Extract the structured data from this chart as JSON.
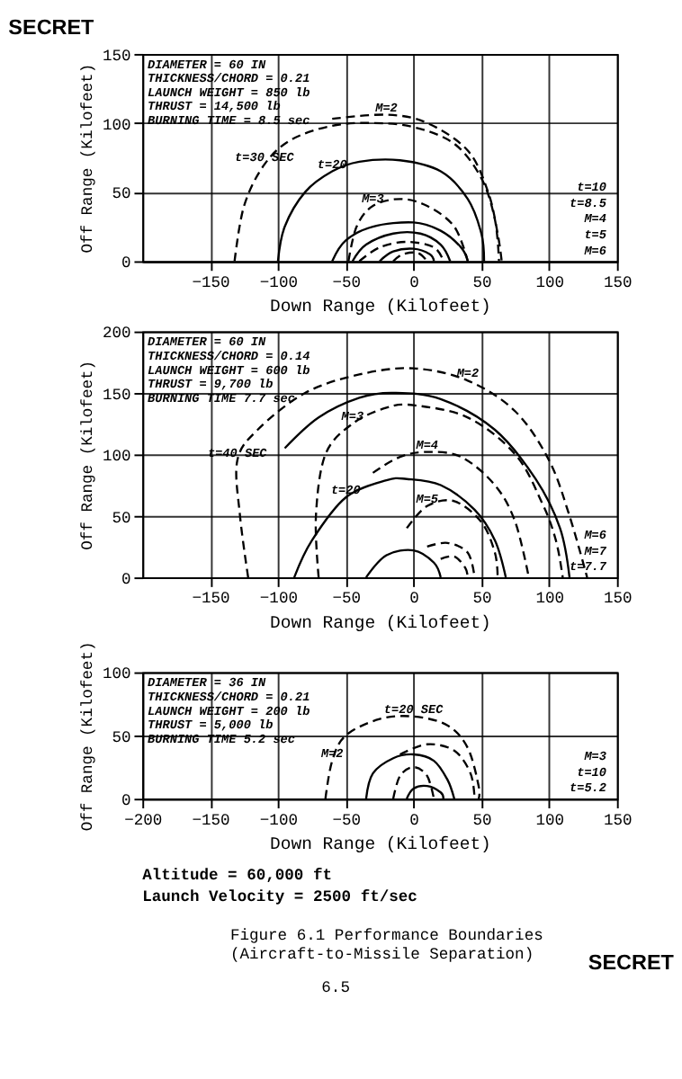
{
  "chart_data": [
    {
      "type": "line",
      "title": "SECRET",
      "xlabel": "Down Range (Kilofeet)",
      "ylabel": "Off Range (Kilofeet)",
      "xlim": [
        -200,
        150
      ],
      "ylim": [
        0,
        150
      ],
      "xticks": [
        -150,
        -100,
        -50,
        0,
        50,
        100,
        150
      ],
      "yticks": [
        0,
        50,
        100,
        150
      ],
      "grid": true,
      "legend": false,
      "marker": "none",
      "series": [
        {
          "color": "#000000",
          "line_style": "dashed",
          "x": [
            -132,
            -125,
            -110,
            -90,
            -60,
            -30,
            0,
            30,
            50,
            60,
            63
          ],
          "values": [
            0,
            40,
            70,
            88,
            98,
            100,
            97,
            85,
            60,
            30,
            0
          ]
        },
        {
          "color": "#000000",
          "line_style": "dashed",
          "x": [
            -60,
            -20,
            10,
            40,
            55,
            62,
            65
          ],
          "values": [
            103,
            106,
            100,
            80,
            50,
            20,
            0
          ]
        },
        {
          "color": "#000000",
          "line_style": "solid",
          "x": [
            -100,
            -95,
            -80,
            -60,
            -40,
            -10,
            20,
            40,
            50,
            52
          ],
          "values": [
            0,
            25,
            50,
            65,
            72,
            73,
            65,
            45,
            20,
            0
          ]
        },
        {
          "color": "#000000",
          "line_style": "dashed",
          "x": [
            -48,
            -42,
            -30,
            -10,
            10,
            30,
            40
          ],
          "values": [
            0,
            25,
            40,
            45,
            40,
            25,
            0
          ]
        },
        {
          "color": "#000000",
          "line_style": "solid",
          "x": [
            -60,
            -50,
            -30,
            0,
            20,
            35,
            40
          ],
          "values": [
            0,
            15,
            25,
            28,
            22,
            10,
            0
          ]
        },
        {
          "color": "#000000",
          "line_style": "solid",
          "x": [
            -45,
            -35,
            -15,
            5,
            20,
            27
          ],
          "values": [
            0,
            12,
            20,
            20,
            12,
            0
          ]
        },
        {
          "color": "#000000",
          "line_style": "dashed",
          "x": [
            -40,
            -25,
            -5,
            15,
            22
          ],
          "values": [
            0,
            10,
            14,
            10,
            0
          ]
        },
        {
          "color": "#000000",
          "line_style": "solid",
          "x": [
            -25,
            -15,
            0,
            12,
            15
          ],
          "values": [
            0,
            7,
            9,
            5,
            0
          ]
        },
        {
          "color": "#000000",
          "line_style": "dashed",
          "x": [
            -15,
            -8,
            3,
            10
          ],
          "values": [
            0,
            5,
            6,
            0
          ]
        }
      ],
      "annotations": [
        "DIAMETER = 60 IN",
        "THICKNESS/CHORD = 0.21",
        "LAUNCH WEIGHT = 850 lb",
        "THRUST = 14,500 lb",
        "BURNING TIME = 8.5 sec",
        {
          "text": "M=2",
          "x": -20,
          "y": 106
        },
        {
          "text": "t=30 SEC",
          "x": -110,
          "y": 70
        },
        {
          "text": "t=20",
          "x": -60,
          "y": 65
        },
        {
          "text": "M=3",
          "x": -30,
          "y": 40
        },
        "t=10",
        "t=8.5",
        "M=4",
        "t=5",
        "M=6"
      ]
    },
    {
      "type": "line",
      "xlabel": "Down Range (Kilofeet)",
      "ylabel": "Off Range (Kilofeet)",
      "xlim": [
        -200,
        150
      ],
      "ylim": [
        0,
        200
      ],
      "xticks": [
        -150,
        -100,
        -50,
        0,
        50,
        100,
        150
      ],
      "yticks": [
        0,
        50,
        100,
        150,
        200
      ],
      "grid": true,
      "legend": false,
      "marker": "none",
      "series": [
        {
          "color": "#000000",
          "line_style": "dashed",
          "x": [
            -122,
            -128,
            -130,
            -115,
            -80,
            -40,
            0,
            40,
            75,
            100,
            115,
            128
          ],
          "values": [
            0,
            50,
            95,
            120,
            150,
            165,
            170,
            160,
            135,
            95,
            50,
            0
          ]
        },
        {
          "color": "#000000",
          "line_style": "solid",
          "x": [
            -95,
            -70,
            -40,
            -15,
            20,
            60,
            90,
            108,
            115
          ],
          "values": [
            105,
            130,
            146,
            150,
            145,
            120,
            80,
            40,
            0
          ]
        },
        {
          "color": "#000000",
          "line_style": "dashed",
          "x": [
            -70,
            -72,
            -65,
            -45,
            -20,
            0,
            40,
            75,
            95,
            105,
            110
          ],
          "values": [
            0,
            50,
            100,
            125,
            138,
            140,
            130,
            100,
            60,
            30,
            0
          ]
        },
        {
          "color": "#000000",
          "line_style": "dashed",
          "x": [
            -30,
            -10,
            10,
            35,
            60,
            75,
            85
          ],
          "values": [
            85,
            98,
            102,
            98,
            75,
            45,
            0
          ]
        },
        {
          "color": "#000000",
          "line_style": "solid",
          "x": [
            -88,
            -75,
            -50,
            -20,
            -5,
            20,
            45,
            60,
            68
          ],
          "values": [
            0,
            30,
            65,
            79,
            80,
            75,
            55,
            30,
            0
          ]
        },
        {
          "color": "#000000",
          "line_style": "dashed",
          "x": [
            -5,
            10,
            30,
            50,
            60,
            62
          ],
          "values": [
            40,
            58,
            62,
            45,
            20,
            0
          ]
        },
        {
          "color": "#000000",
          "line_style": "dashed",
          "x": [
            10,
            25,
            40,
            45
          ],
          "values": [
            25,
            28,
            20,
            0
          ]
        },
        {
          "color": "#000000",
          "line_style": "dashed",
          "x": [
            20,
            30,
            38,
            40
          ],
          "values": [
            15,
            17,
            8,
            0
          ]
        },
        {
          "color": "#000000",
          "line_style": "solid",
          "x": [
            -35,
            -20,
            0,
            15,
            20
          ],
          "values": [
            0,
            18,
            22,
            12,
            0
          ]
        }
      ],
      "annotations": [
        "DIAMETER = 60 IN",
        "THICKNESS/CHORD = 0.14",
        "LAUNCH WEIGHT = 600 lb",
        "THRUST = 9,700 lb",
        "BURNING TIME 7.7 sec",
        {
          "text": "M=2",
          "x": 40,
          "y": 160
        },
        {
          "text": "t=40 SEC",
          "x": -130,
          "y": 95
        },
        {
          "text": "M=3",
          "x": -45,
          "y": 125
        },
        {
          "text": "M=4",
          "x": 10,
          "y": 102
        },
        {
          "text": "M=5",
          "x": 10,
          "y": 58
        },
        {
          "text": "t=20",
          "x": -50,
          "y": 65
        },
        "M=6",
        "M=7",
        "t=7.7"
      ]
    },
    {
      "type": "line",
      "xlabel": "Down Range (Kilofeet)",
      "ylabel": "Off Range (Kilofeet)",
      "xlim": [
        -200,
        150
      ],
      "ylim": [
        0,
        100
      ],
      "xticks": [
        -200,
        -150,
        -100,
        -50,
        0,
        50,
        100,
        150
      ],
      "yticks": [
        0,
        50,
        100
      ],
      "grid": true,
      "legend": false,
      "marker": "none",
      "series": [
        {
          "color": "#000000",
          "line_style": "dashed",
          "x": [
            -65,
            -60,
            -50,
            -25,
            0,
            25,
            40,
            48,
            48
          ],
          "values": [
            0,
            30,
            50,
            63,
            65,
            58,
            40,
            10,
            0
          ]
        },
        {
          "color": "#000000",
          "line_style": "dashed",
          "x": [
            -10,
            10,
            30,
            42,
            45
          ],
          "values": [
            35,
            43,
            38,
            20,
            0
          ]
        },
        {
          "color": "#000000",
          "line_style": "solid",
          "x": [
            -35,
            -30,
            -15,
            0,
            15,
            25,
            30
          ],
          "values": [
            0,
            20,
            32,
            35,
            30,
            15,
            0
          ]
        },
        {
          "color": "#000000",
          "line_style": "dashed",
          "x": [
            -15,
            -10,
            0,
            10,
            15
          ],
          "values": [
            0,
            18,
            25,
            18,
            0
          ]
        },
        {
          "color": "#000000",
          "line_style": "solid",
          "x": [
            -5,
            0,
            10,
            20,
            22
          ],
          "values": [
            0,
            8,
            10,
            5,
            0
          ]
        }
      ],
      "annotations": [
        "DIAMETER = 36 IN",
        "THICKNESS/CHORD = 0.21",
        "LAUNCH WEIGHT = 200 lb",
        "THRUST = 5,000 lb",
        "BURNING TIME 5.2 sec",
        {
          "text": "t=20 SEC",
          "x": 0,
          "y": 65
        },
        {
          "text": "M=2",
          "x": -60,
          "y": 30
        },
        "M=3",
        "t=10",
        "t=5.2"
      ]
    },
    {
      "type": "other",
      "annotations": [
        "Altitude = 60,000 ft",
        "Launch Velocity = 2500 ft/sec",
        "Figure 6.1  Performance Boundaries",
        "(Aircraft-to-Missile Separation)",
        "6.5",
        "SECRET"
      ]
    }
  ]
}
